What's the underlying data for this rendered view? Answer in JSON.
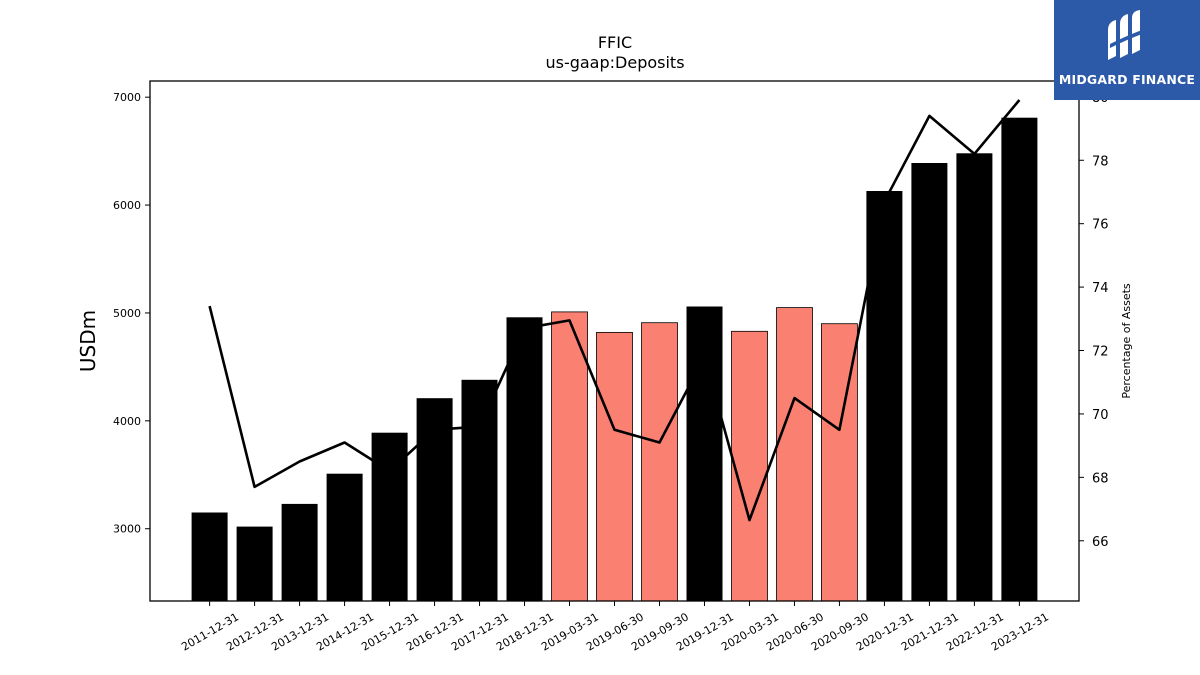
{
  "brand": {
    "name": "MIDGARD FINANCE",
    "color": "#2d5aa8"
  },
  "chart_data": {
    "type": "bar",
    "title": "FFIC",
    "subtitle": "us-gaap:Deposits",
    "ylabel": "USDm",
    "ylabel_right": "Percentage of Assets",
    "ylim": [
      2330,
      7150
    ],
    "ylim_right": [
      64.1,
      80.5
    ],
    "yticks": [
      3000,
      4000,
      5000,
      6000,
      7000
    ],
    "yticks_right": [
      66,
      68,
      70,
      72,
      74,
      76,
      78,
      80
    ],
    "categories": [
      "2011-12-31",
      "2012-12-31",
      "2013-12-31",
      "2014-12-31",
      "2015-12-31",
      "2016-12-31",
      "2017-12-31",
      "2018-12-31",
      "2019-03-31",
      "2019-06-30",
      "2019-09-30",
      "2019-12-31",
      "2020-03-31",
      "2020-06-30",
      "2020-09-30",
      "2020-12-31",
      "2021-12-31",
      "2022-12-31",
      "2023-12-31"
    ],
    "series": [
      {
        "type": "bar",
        "values": [
          3150,
          3020,
          3230,
          3510,
          3890,
          4210,
          4380,
          4960,
          5010,
          4820,
          4910,
          5060,
          4830,
          5050,
          4900,
          6130,
          6390,
          6480,
          6810
        ],
        "colors": [
          "#000000",
          "#000000",
          "#000000",
          "#000000",
          "#000000",
          "#000000",
          "#000000",
          "#000000",
          "#fa8072",
          "#fa8072",
          "#fa8072",
          "#000000",
          "#fa8072",
          "#fa8072",
          "#fa8072",
          "#000000",
          "#000000",
          "#000000",
          "#000000"
        ]
      },
      {
        "type": "line",
        "axis": "right",
        "color": "#000000",
        "values": [
          73.4,
          67.7,
          68.5,
          69.1,
          68.2,
          69.5,
          69.6,
          72.7,
          72.95,
          69.5,
          69.1,
          71.8,
          66.65,
          70.5,
          69.5,
          76.7,
          79.4,
          78.2,
          79.9
        ]
      }
    ],
    "grid": false,
    "legend": "none"
  }
}
